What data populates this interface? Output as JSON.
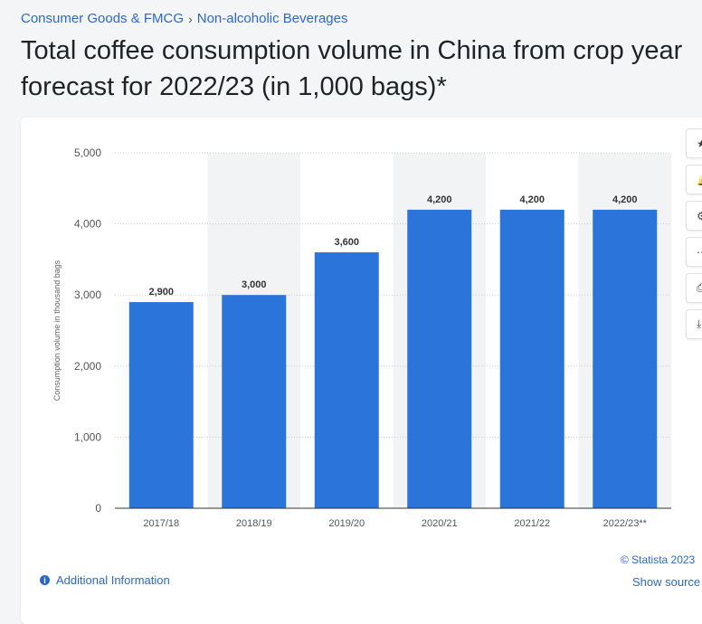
{
  "breadcrumb": {
    "category": "Consumer Goods & FMCG",
    "separator": "›",
    "subcategory": "Non-alcoholic Beverages"
  },
  "title": {
    "line1": "Total coffee consumption volume in China from crop year",
    "line2": "forecast for 2022/23 (in 1,000 bags)*"
  },
  "chart_data": {
    "type": "bar",
    "categories": [
      "2017/18",
      "2018/19",
      "2019/20",
      "2020/21",
      "2021/22",
      "2022/23**"
    ],
    "values": [
      2900,
      3000,
      3600,
      4200,
      4200,
      4200
    ],
    "value_labels": [
      "2,900",
      "3,000",
      "3,600",
      "4,200",
      "4,200",
      "4,200"
    ],
    "ylabel": "Consumption volume in thousand bags",
    "xlabel": "",
    "ylim": [
      0,
      5000
    ],
    "yticks": [
      0,
      1000,
      2000,
      3000,
      4000,
      5000
    ],
    "ytick_labels": [
      "0",
      "1,000",
      "2,000",
      "3,000",
      "4,000",
      "5,000"
    ],
    "grid": true,
    "bar_color": "#2b74d9",
    "band_color": "#f2f3f5"
  },
  "toolbar": {
    "icons": [
      "star-icon",
      "bell-icon",
      "gear-icon",
      "share-icon",
      "print-icon",
      "download-icon"
    ],
    "glyphs": [
      "★",
      "🔔",
      "⚙",
      "⋯",
      "⎙",
      "⤓"
    ]
  },
  "footer": {
    "info_icon": "i",
    "info_label": "Additional Information",
    "copyright": "© Statista 2023",
    "show_source": "Show source"
  }
}
